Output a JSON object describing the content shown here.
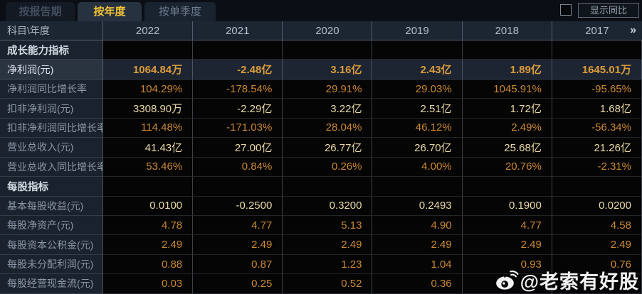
{
  "tabs": [
    {
      "label": "按报告期",
      "active": false
    },
    {
      "label": "按年度",
      "active": true
    },
    {
      "label": "按单季度",
      "active": false
    }
  ],
  "controls": {
    "show_yoy_label": "显示同比",
    "checkbox_checked": false
  },
  "table": {
    "corner_label": "科目\\年度",
    "years": [
      "2022",
      "2021",
      "2020",
      "2019",
      "2018",
      "2017"
    ],
    "more_columns_icon": "»",
    "rows": [
      {
        "type": "section",
        "label": "成长能力指标"
      },
      {
        "type": "data",
        "label": "净利润(元)",
        "style": "highlight",
        "color": "gold",
        "values": [
          "1064.84万",
          "-2.48亿",
          "3.16亿",
          "2.43亿",
          "1.89亿",
          "1645.01万"
        ]
      },
      {
        "type": "data",
        "label": "净利润同比增长率",
        "color": "orange",
        "values": [
          "104.29%",
          "-178.54%",
          "29.91%",
          "29.03%",
          "1045.91%",
          "-95.65%"
        ]
      },
      {
        "type": "data",
        "label": "扣非净利润(元)",
        "color": "pale",
        "values": [
          "3308.90万",
          "-2.29亿",
          "3.22亿",
          "2.51亿",
          "1.72亿",
          "1.68亿"
        ]
      },
      {
        "type": "data",
        "label": "扣非净利润同比增长率",
        "color": "orange",
        "values": [
          "114.48%",
          "-171.03%",
          "28.04%",
          "46.12%",
          "2.49%",
          "-56.34%"
        ]
      },
      {
        "type": "data",
        "label": "营业总收入(元)",
        "color": "pale",
        "values": [
          "41.43亿",
          "27.00亿",
          "26.77亿",
          "26.70亿",
          "25.68亿",
          "21.26亿"
        ]
      },
      {
        "type": "data",
        "label": "营业总收入同比增长率",
        "color": "orange",
        "values": [
          "53.46%",
          "0.84%",
          "0.26%",
          "4.00%",
          "20.76%",
          "-2.31%"
        ]
      },
      {
        "type": "section",
        "label": "每股指标"
      },
      {
        "type": "data",
        "label": "基本每股收益(元)",
        "color": "pale",
        "values": [
          "0.0100",
          "-0.2500",
          "0.3200",
          "0.2493",
          "0.1900",
          "0.0200"
        ]
      },
      {
        "type": "data",
        "label": "每股净资产(元)",
        "color": "orange",
        "values": [
          "4.78",
          "4.77",
          "5.13",
          "4.90",
          "4.77",
          "4.58"
        ]
      },
      {
        "type": "data",
        "label": "每股资本公积金(元)",
        "color": "orange",
        "values": [
          "2.49",
          "2.49",
          "2.49",
          "2.49",
          "2.49",
          "2.49"
        ]
      },
      {
        "type": "data",
        "label": "每股未分配利润(元)",
        "color": "orange",
        "values": [
          "0.88",
          "0.87",
          "1.23",
          "1.04",
          "0.93",
          "0.76"
        ]
      },
      {
        "type": "data",
        "label": "每股经营现金流(元)",
        "color": "orange",
        "values": [
          "0.03",
          "0.25",
          "0.52",
          "0.36",
          "",
          ""
        ]
      }
    ]
  },
  "watermark": {
    "text": "@老索有好股"
  },
  "colors": {
    "accent_gold": "#dc9c3c",
    "value_pale": "#ead9a6",
    "value_orange": "#cd8833",
    "active_tab_text": "#f2c233",
    "header_bg": "#1c2632",
    "highlight_row_bg": "#1c2531"
  }
}
